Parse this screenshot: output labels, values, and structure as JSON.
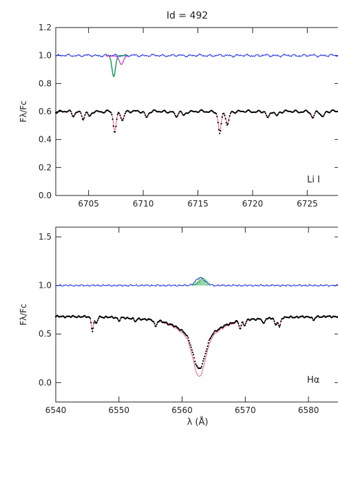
{
  "figure_title": "Id = 492",
  "colors": {
    "residual": "#1f2fe6",
    "observed": "#000000",
    "model": "#e0406a",
    "li_fit": "#1e9a5a",
    "li_fit2": "#cc2bd6",
    "halpha_fill": "#22a64a"
  },
  "chart_data": [
    {
      "type": "line",
      "panel": "top",
      "title": "Id = 492",
      "annotation": "Li I",
      "xlabel": "",
      "ylabel": "Fλ/Fc",
      "xlim": [
        6702,
        6728
      ],
      "ylim": [
        0.0,
        1.2
      ],
      "xticks": [
        6705,
        6710,
        6715,
        6720,
        6725
      ],
      "yticks": [
        0.0,
        0.2,
        0.4,
        0.6,
        0.8,
        1.0,
        1.2
      ],
      "ytick_labels": [
        "0.0",
        "0.2",
        "0.4",
        "0.6",
        "0.8",
        "1.0",
        "1.2"
      ],
      "continuum_level": 0.6,
      "residual_level": 1.0,
      "lines": [
        {
          "x": 6703.6,
          "depth": 0.03
        },
        {
          "x": 6704.5,
          "depth": 0.05
        },
        {
          "x": 6705.1,
          "depth": 0.04
        },
        {
          "x": 6707.4,
          "depth": 0.15
        },
        {
          "x": 6708.1,
          "depth": 0.06
        },
        {
          "x": 6710.3,
          "depth": 0.04
        },
        {
          "x": 6713.0,
          "depth": 0.04
        },
        {
          "x": 6713.7,
          "depth": 0.03
        },
        {
          "x": 6717.0,
          "depth": 0.16
        },
        {
          "x": 6717.7,
          "depth": 0.1
        },
        {
          "x": 6721.4,
          "depth": 0.05
        },
        {
          "x": 6722.2,
          "depth": 0.03
        },
        {
          "x": 6725.5,
          "depth": 0.05
        },
        {
          "x": 6726.4,
          "depth": 0.04
        }
      ],
      "li_feature": {
        "green": {
          "x_range": [
            6706.6,
            6708.6
          ],
          "center": 6707.3,
          "min": 0.85
        },
        "magenta": {
          "x_range": [
            6706.6,
            6708.6
          ],
          "center": 6708.0,
          "min": 0.94
        }
      }
    },
    {
      "type": "line",
      "panel": "bottom",
      "annotation": "Hα",
      "xlabel": "λ (Å)",
      "ylabel": "Fλ/Fc",
      "xlim": [
        6540,
        6585
      ],
      "ylim": [
        -0.2,
        1.6
      ],
      "xticks": [
        6540,
        6550,
        6560,
        6570,
        6580
      ],
      "yticks": [
        0.0,
        0.5,
        1.0,
        1.5
      ],
      "ytick_labels": [
        "0.0",
        "0.5",
        "1.0",
        "1.5"
      ],
      "continuum_level": 0.68,
      "residual_level": 1.0,
      "halpha": {
        "center": 6562.7,
        "observed_min": 0.14,
        "model_min": 0.06,
        "emission_peak": 1.08,
        "emission_range": [
          6561.5,
          6564.0
        ]
      },
      "lines": [
        {
          "x": 6545.8,
          "depth": 0.14
        },
        {
          "x": 6546.4,
          "depth": 0.07
        },
        {
          "x": 6550.0,
          "depth": 0.03
        },
        {
          "x": 6552.6,
          "depth": 0.03
        },
        {
          "x": 6555.8,
          "depth": 0.06
        },
        {
          "x": 6569.2,
          "depth": 0.08
        },
        {
          "x": 6569.9,
          "depth": 0.05
        },
        {
          "x": 6572.9,
          "depth": 0.06
        },
        {
          "x": 6574.8,
          "depth": 0.08
        },
        {
          "x": 6575.4,
          "depth": 0.1
        },
        {
          "x": 6580.8,
          "depth": 0.04
        }
      ]
    }
  ]
}
